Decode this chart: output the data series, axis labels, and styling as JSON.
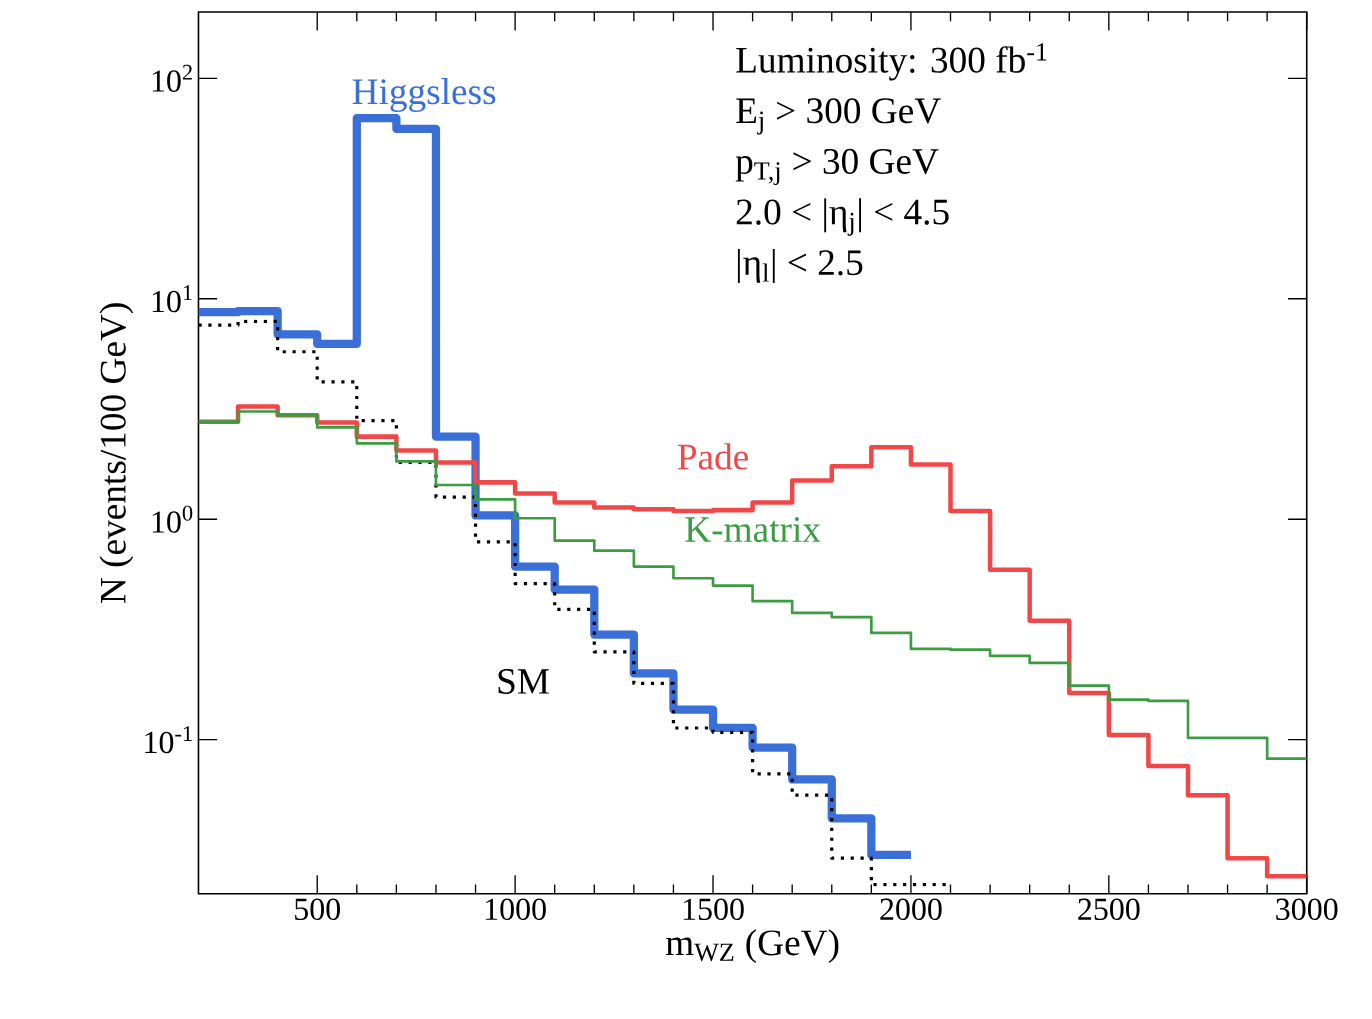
{
  "chart_data": {
    "type": "step",
    "xlabel": "m$_{WZ}$ (GeV)",
    "ylabel": "N (events/100 GeV)",
    "log": "y",
    "xlim": [
      200,
      3000
    ],
    "xticks": [
      500,
      1000,
      1500,
      2000,
      2500,
      3000
    ],
    "ylim": [
      0.02,
      200
    ],
    "yticks": [
      {
        "value": 0.1,
        "label": "10$^{-1}$"
      },
      {
        "value": 1,
        "label": "10$^{0}$"
      },
      {
        "value": 10,
        "label": "10$^{1}$"
      },
      {
        "value": 100,
        "label": "10$^{2}$"
      }
    ],
    "series": [
      {
        "name": "Higgsless",
        "color": "#3a6fd8",
        "line_style": "solid",
        "x": [
          200,
          300,
          400,
          500,
          600,
          700,
          800,
          900,
          1000,
          1100,
          1200,
          1300,
          1400,
          1500,
          1600,
          1700,
          1800,
          1900,
          2000
        ],
        "values": [
          8.7,
          8.8,
          6.9,
          6.25,
          66,
          59,
          2.37,
          1.04,
          0.61,
          0.48,
          0.3,
          0.2,
          0.137,
          0.113,
          0.092,
          0.066,
          0.044,
          0.03,
          0.03
        ]
      },
      {
        "name": "SM",
        "color": "#000000",
        "line_style": "dotted",
        "x": [
          200,
          300,
          400,
          500,
          600,
          700,
          800,
          900,
          1000,
          1100,
          1200,
          1300,
          1400,
          1500,
          1600,
          1700,
          1800,
          1900,
          2000,
          2100
        ],
        "values": [
          7.6,
          7.9,
          5.75,
          4.2,
          2.8,
          1.81,
          1.26,
          0.79,
          0.51,
          0.39,
          0.25,
          0.18,
          0.113,
          0.108,
          0.07,
          0.056,
          0.029,
          0.022,
          0.022,
          0.022
        ]
      },
      {
        "name": "Pade",
        "color": "#f04848",
        "line_style": "solid",
        "x": [
          200,
          300,
          400,
          500,
          600,
          700,
          800,
          900,
          1000,
          1100,
          1200,
          1300,
          1400,
          1500,
          1600,
          1700,
          1800,
          1900,
          2000,
          2100,
          2200,
          2300,
          2400,
          2500,
          2600,
          2700,
          2800,
          2900,
          3000
        ],
        "values": [
          2.77,
          3.25,
          2.96,
          2.75,
          2.37,
          2.05,
          1.81,
          1.47,
          1.31,
          1.19,
          1.13,
          1.11,
          1.09,
          1.1,
          1.19,
          1.5,
          1.74,
          2.12,
          1.77,
          1.09,
          0.59,
          0.346,
          0.163,
          0.105,
          0.076,
          0.056,
          0.029,
          0.024,
          0.024
        ]
      },
      {
        "name": "K-matrix",
        "color": "#3c9c44",
        "line_style": "solid",
        "x": [
          200,
          300,
          400,
          500,
          600,
          700,
          800,
          900,
          1000,
          1100,
          1200,
          1300,
          1400,
          1500,
          1600,
          1700,
          1800,
          1900,
          2000,
          2100,
          2200,
          2300,
          2400,
          2500,
          2600,
          2700,
          2800,
          2900,
          3000
        ],
        "values": [
          2.77,
          3.08,
          2.96,
          2.61,
          2.21,
          1.83,
          1.43,
          1.23,
          1.01,
          0.8,
          0.72,
          0.61,
          0.54,
          0.5,
          0.425,
          0.376,
          0.36,
          0.305,
          0.258,
          0.256,
          0.24,
          0.223,
          0.176,
          0.152,
          0.15,
          0.102,
          0.102,
          0.082,
          0.082
        ]
      }
    ],
    "annotations": [
      "Luminosity: 300 fb$^{-1}$",
      "E$_{j}$ > 300 GeV",
      "p$_{T,j}$ > 30 GeV",
      "2.0 < |η$_{j}$| < 4.5",
      "|η$_{l}$| < 2.5"
    ],
    "marker": "none"
  }
}
